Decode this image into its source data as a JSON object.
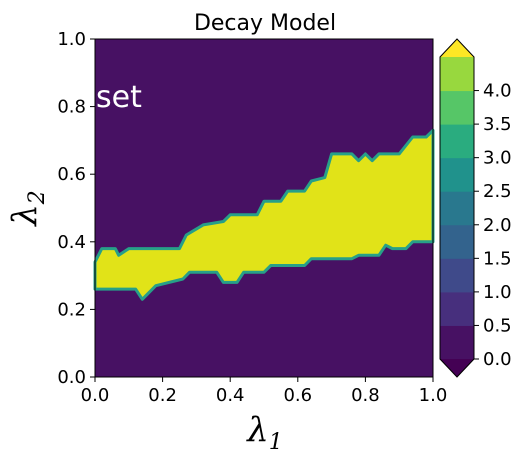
{
  "chart_data": {
    "type": "heatmap",
    "subtype": "filled-contour",
    "title": "Decay Model",
    "xlabel": "λ",
    "xlabel_sub": "1",
    "ylabel": "λ",
    "ylabel_sub": "2",
    "xlim": [
      0.0,
      1.0
    ],
    "ylim": [
      0.0,
      1.0
    ],
    "xticks": [
      "0.0",
      "0.2",
      "0.4",
      "0.6",
      "0.8",
      "1.0"
    ],
    "yticks": [
      "0.0",
      "0.2",
      "0.4",
      "0.6",
      "0.8",
      "1.0"
    ],
    "annotation": "set",
    "background_level": 0.0,
    "region_level": 4.0,
    "region_upper_boundary": [
      {
        "x": 0.0,
        "y": 0.34
      },
      {
        "x": 0.02,
        "y": 0.38
      },
      {
        "x": 0.06,
        "y": 0.38
      },
      {
        "x": 0.07,
        "y": 0.36
      },
      {
        "x": 0.1,
        "y": 0.38
      },
      {
        "x": 0.25,
        "y": 0.38
      },
      {
        "x": 0.27,
        "y": 0.42
      },
      {
        "x": 0.32,
        "y": 0.45
      },
      {
        "x": 0.38,
        "y": 0.46
      },
      {
        "x": 0.4,
        "y": 0.48
      },
      {
        "x": 0.48,
        "y": 0.48
      },
      {
        "x": 0.5,
        "y": 0.52
      },
      {
        "x": 0.55,
        "y": 0.52
      },
      {
        "x": 0.57,
        "y": 0.55
      },
      {
        "x": 0.62,
        "y": 0.55
      },
      {
        "x": 0.64,
        "y": 0.58
      },
      {
        "x": 0.68,
        "y": 0.59
      },
      {
        "x": 0.7,
        "y": 0.66
      },
      {
        "x": 0.76,
        "y": 0.66
      },
      {
        "x": 0.78,
        "y": 0.64
      },
      {
        "x": 0.8,
        "y": 0.66
      },
      {
        "x": 0.82,
        "y": 0.64
      },
      {
        "x": 0.84,
        "y": 0.66
      },
      {
        "x": 0.9,
        "y": 0.66
      },
      {
        "x": 0.94,
        "y": 0.71
      },
      {
        "x": 0.98,
        "y": 0.71
      },
      {
        "x": 1.0,
        "y": 0.73
      }
    ],
    "region_lower_boundary": [
      {
        "x": 0.0,
        "y": 0.26
      },
      {
        "x": 0.12,
        "y": 0.26
      },
      {
        "x": 0.14,
        "y": 0.23
      },
      {
        "x": 0.18,
        "y": 0.27
      },
      {
        "x": 0.26,
        "y": 0.29
      },
      {
        "x": 0.28,
        "y": 0.31
      },
      {
        "x": 0.36,
        "y": 0.31
      },
      {
        "x": 0.38,
        "y": 0.28
      },
      {
        "x": 0.42,
        "y": 0.28
      },
      {
        "x": 0.44,
        "y": 0.31
      },
      {
        "x": 0.5,
        "y": 0.31
      },
      {
        "x": 0.52,
        "y": 0.33
      },
      {
        "x": 0.62,
        "y": 0.33
      },
      {
        "x": 0.64,
        "y": 0.35
      },
      {
        "x": 0.76,
        "y": 0.35
      },
      {
        "x": 0.78,
        "y": 0.36
      },
      {
        "x": 0.84,
        "y": 0.36
      },
      {
        "x": 0.86,
        "y": 0.39
      },
      {
        "x": 0.88,
        "y": 0.38
      },
      {
        "x": 0.92,
        "y": 0.38
      },
      {
        "x": 0.94,
        "y": 0.4
      },
      {
        "x": 1.0,
        "y": 0.4
      }
    ],
    "colorbar": {
      "levels": [
        0.0,
        0.5,
        1.0,
        1.5,
        2.0,
        2.5,
        3.0,
        3.5,
        4.0
      ],
      "ticks": [
        "0.0",
        "0.5",
        "1.0",
        "1.5",
        "2.0",
        "2.5",
        "3.0",
        "3.5",
        "4.0"
      ],
      "colors": [
        "#471163",
        "#472f7d",
        "#3f4a8a",
        "#33638d",
        "#29788e",
        "#20928c",
        "#2aac7f",
        "#56c667",
        "#98d83e"
      ],
      "extend_under_color": "#440154",
      "extend_over_color": "#fde725",
      "region_color": "#e1e318",
      "edge_color": "#27a088"
    }
  }
}
